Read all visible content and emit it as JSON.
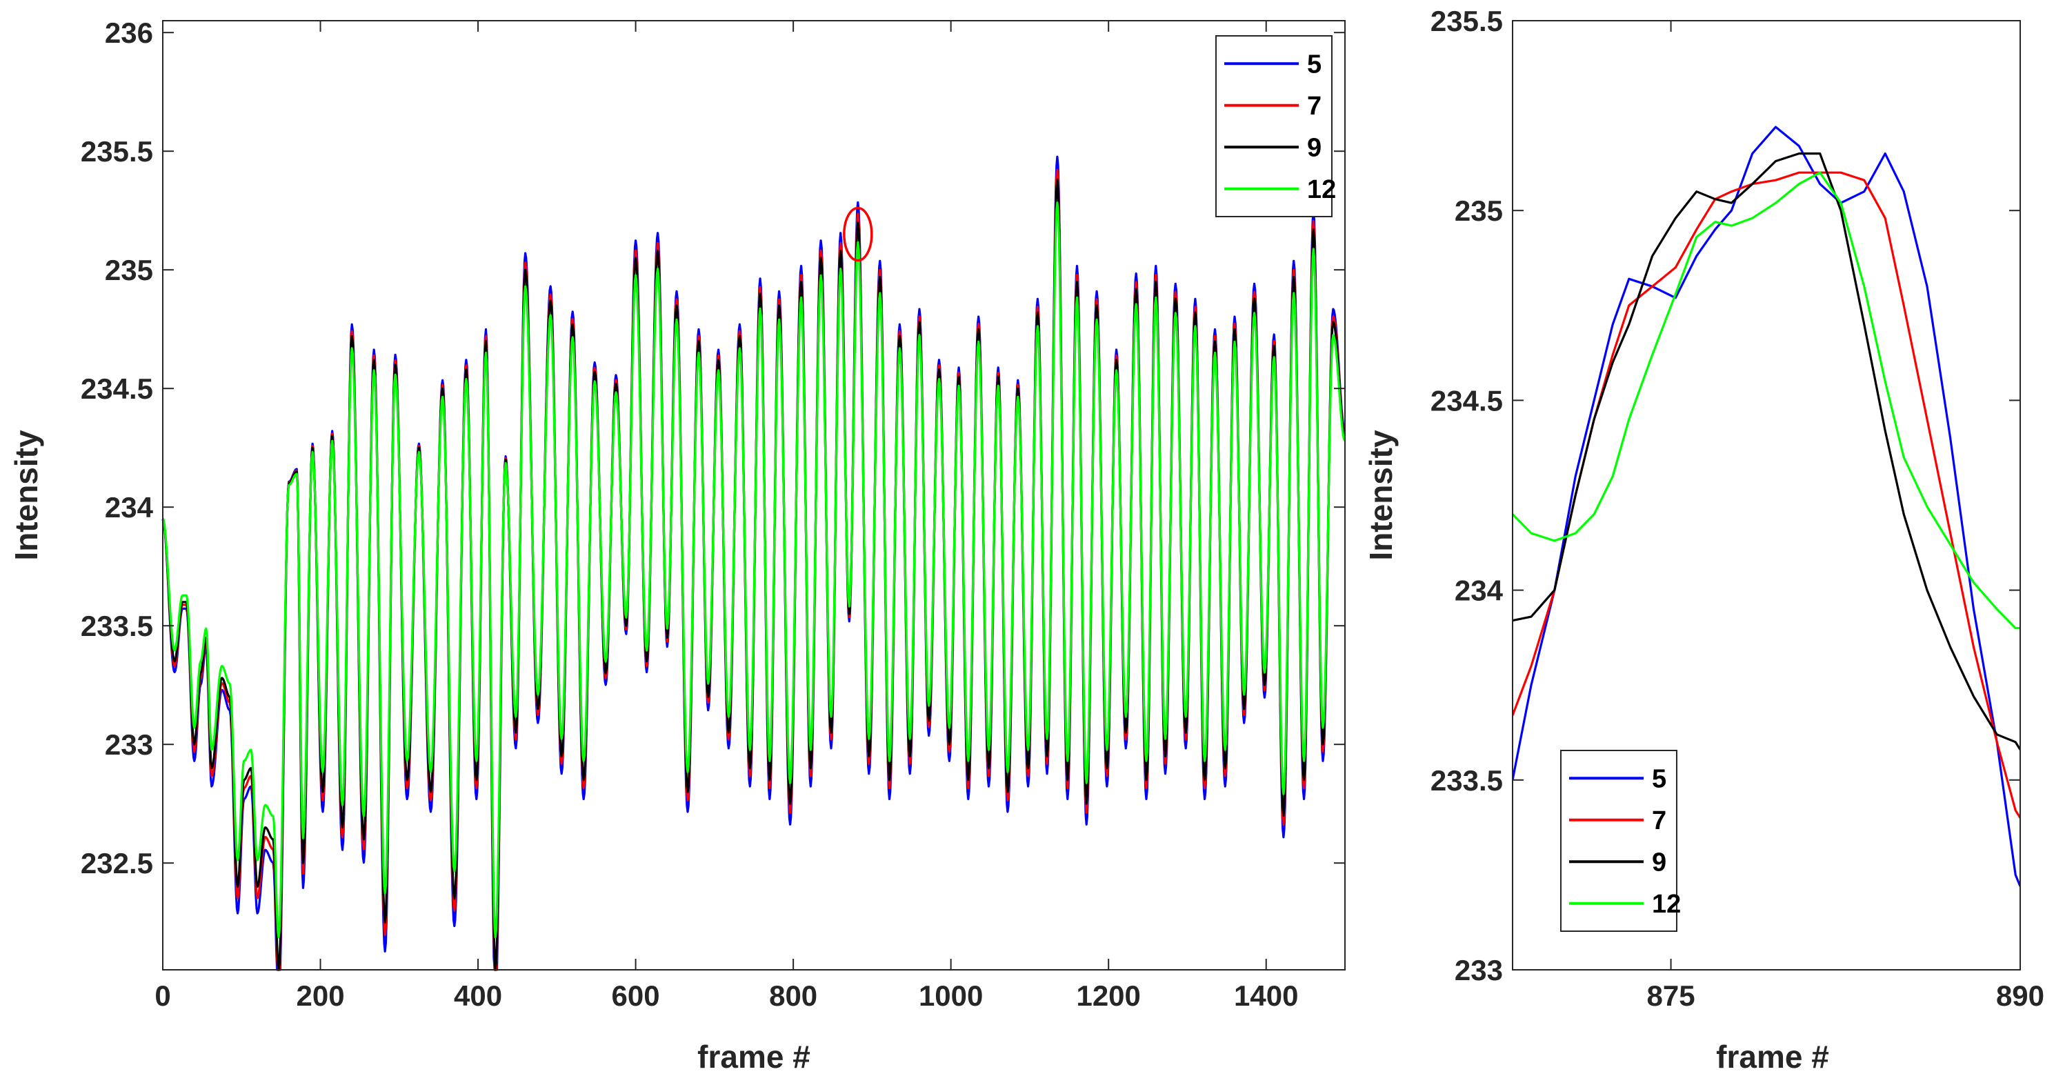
{
  "chart_data": [
    {
      "type": "line",
      "xlabel": "frame #",
      "ylabel": "Intensity",
      "xlim": [
        0,
        1500
      ],
      "ylim": [
        232.05,
        236.05
      ],
      "xticks": [
        0,
        200,
        400,
        600,
        800,
        1000,
        1200,
        1400
      ],
      "yticks": [
        232.5,
        233,
        233.5,
        234,
        234.5,
        235,
        235.5,
        236
      ],
      "ytick_labels": [
        "232.5",
        "233",
        "233.5",
        "234",
        "234.5",
        "235",
        "235.5",
        "236"
      ],
      "xtick_labels": [
        "0",
        "200",
        "400",
        "600",
        "800",
        "1000",
        "1200",
        "1400"
      ],
      "legend": {
        "position": "top-right",
        "entries": [
          "5",
          "7",
          "9",
          "12"
        ]
      },
      "annotation": {
        "type": "circle",
        "color": "#ff0000",
        "x": 882,
        "y": 235.15
      },
      "anchors": {
        "x": [
          0,
          15,
          25,
          30,
          40,
          48,
          55,
          62,
          75,
          85,
          95,
          103,
          112,
          120,
          130,
          140,
          147,
          160,
          170
        ],
        "y": [
          233.95,
          233.35,
          233.6,
          233.6,
          233.0,
          233.3,
          233.45,
          232.9,
          233.28,
          233.2,
          232.4,
          232.85,
          232.9,
          232.4,
          232.65,
          232.6,
          232.05,
          234.1,
          234.15
        ]
      },
      "peaks": [
        {
          "x": 190,
          "max": 234.25
        },
        {
          "x": 215,
          "max": 234.3
        },
        {
          "x": 240,
          "max": 234.72
        },
        {
          "x": 268,
          "max": 234.62
        },
        {
          "x": 295,
          "max": 234.6
        },
        {
          "x": 325,
          "max": 234.25
        },
        {
          "x": 355,
          "max": 234.5
        },
        {
          "x": 385,
          "max": 234.58
        },
        {
          "x": 410,
          "max": 234.7
        },
        {
          "x": 435,
          "max": 234.2
        },
        {
          "x": 460,
          "max": 235.0
        },
        {
          "x": 492,
          "max": 234.87
        },
        {
          "x": 520,
          "max": 234.77
        },
        {
          "x": 548,
          "max": 234.57
        },
        {
          "x": 575,
          "max": 234.52
        },
        {
          "x": 600,
          "max": 235.05
        },
        {
          "x": 628,
          "max": 235.08
        },
        {
          "x": 652,
          "max": 234.85
        },
        {
          "x": 680,
          "max": 234.7
        },
        {
          "x": 705,
          "max": 234.62
        },
        {
          "x": 732,
          "max": 234.72
        },
        {
          "x": 758,
          "max": 234.9
        },
        {
          "x": 782,
          "max": 234.85
        },
        {
          "x": 810,
          "max": 234.95
        },
        {
          "x": 835,
          "max": 235.05
        },
        {
          "x": 860,
          "max": 235.08
        },
        {
          "x": 882,
          "max": 235.2
        },
        {
          "x": 910,
          "max": 234.97
        },
        {
          "x": 935,
          "max": 234.72
        },
        {
          "x": 960,
          "max": 234.78
        },
        {
          "x": 985,
          "max": 234.58
        },
        {
          "x": 1010,
          "max": 234.55
        },
        {
          "x": 1035,
          "max": 234.75
        },
        {
          "x": 1060,
          "max": 234.55
        },
        {
          "x": 1085,
          "max": 234.5
        },
        {
          "x": 1110,
          "max": 234.82
        },
        {
          "x": 1135,
          "max": 235.38
        },
        {
          "x": 1160,
          "max": 234.95
        },
        {
          "x": 1185,
          "max": 234.85
        },
        {
          "x": 1210,
          "max": 234.62
        },
        {
          "x": 1235,
          "max": 234.92
        },
        {
          "x": 1260,
          "max": 234.95
        },
        {
          "x": 1285,
          "max": 234.88
        },
        {
          "x": 1310,
          "max": 234.82
        },
        {
          "x": 1335,
          "max": 234.7
        },
        {
          "x": 1360,
          "max": 234.75
        },
        {
          "x": 1385,
          "max": 234.88
        },
        {
          "x": 1410,
          "max": 234.68
        },
        {
          "x": 1435,
          "max": 234.97
        },
        {
          "x": 1460,
          "max": 235.17
        },
        {
          "x": 1485,
          "max": 234.78
        }
      ],
      "troughs": [
        {
          "x": 178,
          "min": 232.5
        },
        {
          "x": 203,
          "min": 232.8
        },
        {
          "x": 228,
          "min": 232.65
        },
        {
          "x": 255,
          "min": 232.6
        },
        {
          "x": 282,
          "min": 232.25
        },
        {
          "x": 310,
          "min": 232.85
        },
        {
          "x": 340,
          "min": 232.8
        },
        {
          "x": 370,
          "min": 232.35
        },
        {
          "x": 398,
          "min": 232.85
        },
        {
          "x": 422,
          "min": 232.05
        },
        {
          "x": 448,
          "min": 233.05
        },
        {
          "x": 476,
          "min": 233.15
        },
        {
          "x": 506,
          "min": 232.95
        },
        {
          "x": 534,
          "min": 232.85
        },
        {
          "x": 562,
          "min": 233.3
        },
        {
          "x": 588,
          "min": 233.5
        },
        {
          "x": 614,
          "min": 233.35
        },
        {
          "x": 640,
          "min": 233.45
        },
        {
          "x": 666,
          "min": 232.8
        },
        {
          "x": 692,
          "min": 233.2
        },
        {
          "x": 718,
          "min": 233.05
        },
        {
          "x": 745,
          "min": 232.9
        },
        {
          "x": 770,
          "min": 232.85
        },
        {
          "x": 796,
          "min": 232.75
        },
        {
          "x": 822,
          "min": 232.9
        },
        {
          "x": 848,
          "min": 233.05
        },
        {
          "x": 871,
          "min": 233.55
        },
        {
          "x": 896,
          "min": 232.95
        },
        {
          "x": 922,
          "min": 232.85
        },
        {
          "x": 948,
          "min": 232.95
        },
        {
          "x": 972,
          "min": 233.1
        },
        {
          "x": 998,
          "min": 233.0
        },
        {
          "x": 1022,
          "min": 232.85
        },
        {
          "x": 1048,
          "min": 232.9
        },
        {
          "x": 1072,
          "min": 232.8
        },
        {
          "x": 1098,
          "min": 232.9
        },
        {
          "x": 1122,
          "min": 232.95
        },
        {
          "x": 1148,
          "min": 232.85
        },
        {
          "x": 1172,
          "min": 232.75
        },
        {
          "x": 1198,
          "min": 232.9
        },
        {
          "x": 1222,
          "min": 233.05
        },
        {
          "x": 1248,
          "min": 232.85
        },
        {
          "x": 1272,
          "min": 232.95
        },
        {
          "x": 1298,
          "min": 233.05
        },
        {
          "x": 1322,
          "min": 232.85
        },
        {
          "x": 1348,
          "min": 232.9
        },
        {
          "x": 1372,
          "min": 233.15
        },
        {
          "x": 1398,
          "min": 233.25
        },
        {
          "x": 1422,
          "min": 232.7
        },
        {
          "x": 1448,
          "min": 232.85
        },
        {
          "x": 1472,
          "min": 233.0
        }
      ],
      "tail": {
        "x": 1500,
        "y": 234.3
      },
      "series": [
        {
          "name": "5",
          "color": "#0000ff",
          "amp_scale": 1.07
        },
        {
          "name": "7",
          "color": "#ff0000",
          "amp_scale": 1.03
        },
        {
          "name": "9",
          "color": "#000000",
          "amp_scale": 1.0
        },
        {
          "name": "12",
          "color": "#00ff00",
          "amp_scale": 0.93
        }
      ]
    },
    {
      "type": "line",
      "xlabel": "frame #",
      "ylabel": "Intensity",
      "xlim": [
        868.2,
        890
      ],
      "ylim": [
        233,
        235.5
      ],
      "xticks": [
        875,
        890
      ],
      "xtick_labels": [
        "875",
        "890"
      ],
      "yticks": [
        233,
        233.5,
        234,
        234.5,
        235,
        235.5
      ],
      "ytick_labels": [
        "233",
        "233.5",
        "234",
        "234.5",
        "235",
        "235.5"
      ],
      "legend": {
        "position": "bottom-left",
        "entries": [
          "5",
          "7",
          "9",
          "12"
        ]
      },
      "series": [
        {
          "name": "5",
          "color": "#0000ff",
          "x": [
            868.2,
            869.0,
            870.0,
            870.9,
            871.7,
            872.5,
            873.2,
            874.2,
            875.2,
            876.1,
            876.9,
            877.6,
            878.5,
            879.5,
            880.5,
            881.4,
            882.3,
            883.3,
            884.2,
            885.0,
            886.0,
            887.0,
            888.0,
            889.0,
            889.8,
            890.0
          ],
          "y": [
            233.5,
            233.75,
            234.0,
            234.3,
            234.5,
            234.7,
            234.82,
            234.8,
            234.77,
            234.88,
            234.95,
            235.0,
            235.15,
            235.22,
            235.17,
            235.07,
            235.02,
            235.05,
            235.15,
            235.05,
            234.8,
            234.4,
            233.95,
            233.6,
            233.25,
            233.22
          ]
        },
        {
          "name": "7",
          "color": "#ff0000",
          "x": [
            868.2,
            869.0,
            870.0,
            870.9,
            871.7,
            872.5,
            873.2,
            874.2,
            875.2,
            876.1,
            876.9,
            877.6,
            878.5,
            879.5,
            880.5,
            881.4,
            882.3,
            883.3,
            884.2,
            885.0,
            886.0,
            887.0,
            888.0,
            889.0,
            889.8,
            890.0
          ],
          "y": [
            233.67,
            233.8,
            234.0,
            234.25,
            234.45,
            234.62,
            234.75,
            234.8,
            234.85,
            234.95,
            235.03,
            235.05,
            235.07,
            235.08,
            235.1,
            235.1,
            235.1,
            235.08,
            234.98,
            234.75,
            234.45,
            234.15,
            233.85,
            233.6,
            233.42,
            233.4
          ]
        },
        {
          "name": "9",
          "color": "#000000",
          "x": [
            868.2,
            869.0,
            870.0,
            870.9,
            871.7,
            872.5,
            873.2,
            874.2,
            875.2,
            876.1,
            876.9,
            877.6,
            878.5,
            879.5,
            880.5,
            881.4,
            882.3,
            883.3,
            884.2,
            885.0,
            886.0,
            887.0,
            888.0,
            889.0,
            889.8,
            890.0
          ],
          "y": [
            233.92,
            233.93,
            234.0,
            234.25,
            234.45,
            234.6,
            234.7,
            234.88,
            234.98,
            235.05,
            235.03,
            235.02,
            235.07,
            235.13,
            235.15,
            235.15,
            235.0,
            234.7,
            234.42,
            234.2,
            234.0,
            233.85,
            233.72,
            233.62,
            233.6,
            233.58
          ]
        },
        {
          "name": "12",
          "color": "#00ff00",
          "x": [
            868.2,
            869.0,
            870.0,
            870.9,
            871.7,
            872.5,
            873.2,
            874.2,
            875.2,
            876.1,
            876.9,
            877.6,
            878.5,
            879.5,
            880.5,
            881.4,
            882.3,
            883.3,
            884.2,
            885.0,
            886.0,
            887.0,
            888.0,
            889.0,
            889.8,
            890.0
          ],
          "y": [
            234.2,
            234.15,
            234.13,
            234.15,
            234.2,
            234.3,
            234.45,
            234.62,
            234.78,
            234.93,
            234.97,
            234.96,
            234.98,
            235.02,
            235.07,
            235.1,
            235.02,
            234.8,
            234.55,
            234.35,
            234.22,
            234.12,
            234.02,
            233.95,
            233.9,
            233.9
          ]
        }
      ]
    }
  ]
}
